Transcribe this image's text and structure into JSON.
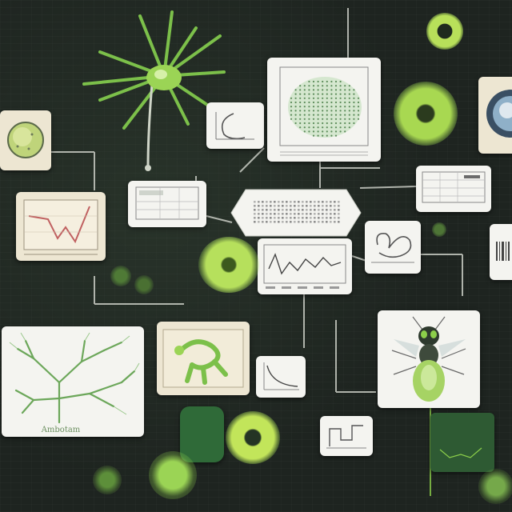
{
  "colors": {
    "background": "#1e2420",
    "accent_green": "#8ccf4a",
    "card_white": "#f4f4f0",
    "card_cream": "#ede6d2"
  },
  "labels": {
    "tree_caption": "Ambotam"
  },
  "icons": [
    "neuron-organism-icon",
    "cell-bubble-icon",
    "line-chart-icon",
    "dot-grid-chart-icon",
    "branching-tree-icon",
    "microorganism-icon",
    "insect-icon"
  ]
}
